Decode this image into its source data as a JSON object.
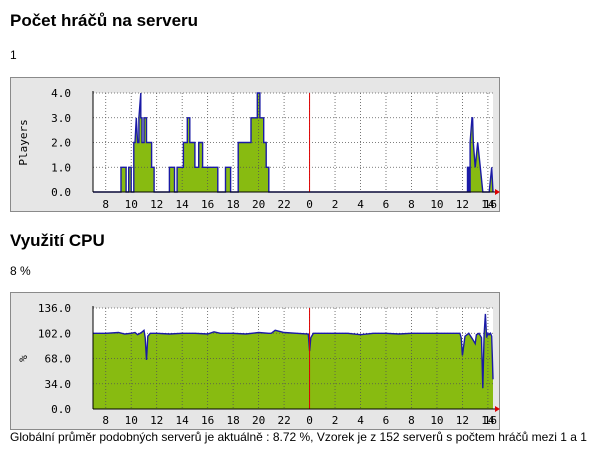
{
  "section_players": {
    "title": "Počet hráčů na serveru",
    "value": "1"
  },
  "section_cpu": {
    "title": "Využití CPU",
    "value": "8 %"
  },
  "footer": {
    "text": "Globální průměr podobných serverů je aktuálně : 8.72 %, Vzorek je z 152 serverů s počtem hráčů mezi 1 a 1"
  },
  "colors": {
    "fill": "#88bb11",
    "line": "#1a1aa6",
    "now_marker": "#dd0000",
    "frame_bg": "#e6e6e6"
  },
  "chart_data": [
    {
      "type": "area",
      "ylabel": "Players",
      "xlabel": "",
      "title": "",
      "ylim": [
        0,
        4
      ],
      "y_ticks": [
        "0.0",
        "1.0",
        "2.0",
        "3.0",
        "4.0"
      ],
      "x_ticks": [
        "8",
        "10",
        "12",
        "14",
        "16",
        "18",
        "20",
        "22",
        "0",
        "2",
        "4",
        "6",
        "8",
        "10",
        "12",
        "14",
        "16"
      ],
      "grid": true,
      "now_marker_hour": 0,
      "series": [
        {
          "x": [
            7,
            9.2,
            9.2,
            9.6,
            9.6,
            9.8,
            9.8,
            10,
            10,
            10.2,
            10.2,
            10.3,
            10.4,
            10.5,
            10.6,
            10.6,
            10.75,
            10.75,
            10.85,
            10.85,
            11.0,
            11.0,
            11.2,
            11.2,
            11.4,
            11.4,
            11.6,
            11.6,
            11.8,
            11.8,
            12,
            12,
            12.5,
            12.5,
            13,
            13,
            13.4,
            13.4,
            13.6,
            13.6,
            13.9,
            13.9,
            14.1,
            14.1,
            14.4,
            14.4,
            14.6,
            14.6,
            15.0,
            15.0,
            15.3,
            15.3,
            15.6,
            15.6,
            15.9,
            15.9,
            16.2,
            16.2,
            16.5,
            16.5,
            16.8,
            16.8,
            17.4,
            17.4,
            17.8,
            17.8,
            18.4,
            18.4,
            18.6,
            18.6,
            18.8,
            18.8,
            19.4,
            19.4,
            19.9,
            19.9,
            20.1,
            20.1,
            20.4,
            20.4,
            20.6,
            20.6,
            20.8,
            20.8,
            21.0,
            21.0,
            21.3,
            21.3,
            22,
            22,
            23,
            31,
            36.2,
            36.2,
            36.4,
            36.4,
            36.5,
            36.5,
            36.6,
            36.6,
            36.75,
            36.8,
            36.85,
            36.85,
            37.0,
            37.0,
            37.2,
            37.2,
            37.4,
            37.4,
            37.6,
            37.6,
            37.8,
            37.8,
            38.1,
            38.1,
            38.3,
            38.3,
            38.4,
            38.4
          ],
          "y": [
            0,
            0,
            1,
            1,
            0,
            0,
            1,
            1,
            0,
            0,
            2,
            2,
            3,
            2,
            2,
            3,
            4,
            3,
            3,
            2,
            2,
            3,
            3,
            2,
            2,
            2,
            2,
            1,
            1,
            0,
            0,
            0,
            0,
            0,
            0,
            1,
            1,
            0,
            0,
            1,
            1,
            1,
            1,
            2,
            2,
            3,
            3,
            2,
            2,
            1,
            1,
            2,
            2,
            1,
            1,
            1,
            1,
            1,
            1,
            1,
            1,
            0,
            0,
            1,
            1,
            0,
            0,
            2,
            2,
            2,
            2,
            2,
            2,
            3,
            3,
            4,
            4,
            3,
            3,
            2,
            2,
            1,
            1,
            0,
            0,
            0,
            0,
            0,
            0,
            0,
            0,
            0,
            0,
            0,
            0,
            1,
            1,
            0,
            0,
            2,
            3,
            3,
            2,
            2,
            1,
            1,
            2,
            2,
            1,
            1,
            0,
            0,
            0,
            0,
            0,
            0,
            1,
            1,
            0,
            0
          ]
        }
      ]
    },
    {
      "type": "area",
      "ylabel": "%",
      "xlabel": "",
      "title": "",
      "ylim": [
        0,
        136
      ],
      "y_ticks": [
        "0.0",
        "34.0",
        "68.0",
        "102.0",
        "136.0"
      ],
      "x_ticks": [
        "8",
        "10",
        "12",
        "14",
        "16",
        "18",
        "20",
        "22",
        "0",
        "2",
        "4",
        "6",
        "8",
        "10",
        "12",
        "14",
        "16"
      ],
      "grid": true,
      "now_marker_hour": 0,
      "series": [
        {
          "x": [
            7,
            8,
            9,
            9.5,
            10,
            10.3,
            10.5,
            10.8,
            11.0,
            11.1,
            11.2,
            11.3,
            11.5,
            12,
            13,
            14,
            15,
            16,
            16.5,
            17,
            18,
            19,
            20,
            20.8,
            21.0,
            21.3,
            22,
            23,
            23.9,
            24.0,
            24.1,
            24.3,
            25,
            26,
            27,
            28,
            29,
            30,
            31,
            32,
            33,
            34,
            35,
            35.5,
            35.7,
            35.8,
            35.9,
            36.0,
            36.2,
            36.5,
            36.8,
            37.0,
            37.1,
            37.3,
            37.5,
            37.6,
            37.7,
            37.8,
            37.9,
            38.0,
            38.1,
            38.2,
            38.3,
            38.4
          ],
          "y": [
            102,
            102,
            103,
            101,
            102,
            103,
            100,
            103,
            106,
            96,
            66,
            98,
            102,
            102,
            101,
            102,
            102,
            101,
            104,
            102,
            102,
            101,
            103,
            102,
            102,
            106,
            103,
            102,
            101,
            78,
            96,
            102,
            102,
            102,
            102,
            100,
            102,
            102,
            101,
            102,
            102,
            102,
            102,
            102,
            102,
            102,
            96,
            72,
            98,
            102,
            94,
            88,
            100,
            102,
            96,
            28,
            100,
            128,
            96,
            102,
            100,
            102,
            98,
            40
          ]
        }
      ]
    }
  ]
}
